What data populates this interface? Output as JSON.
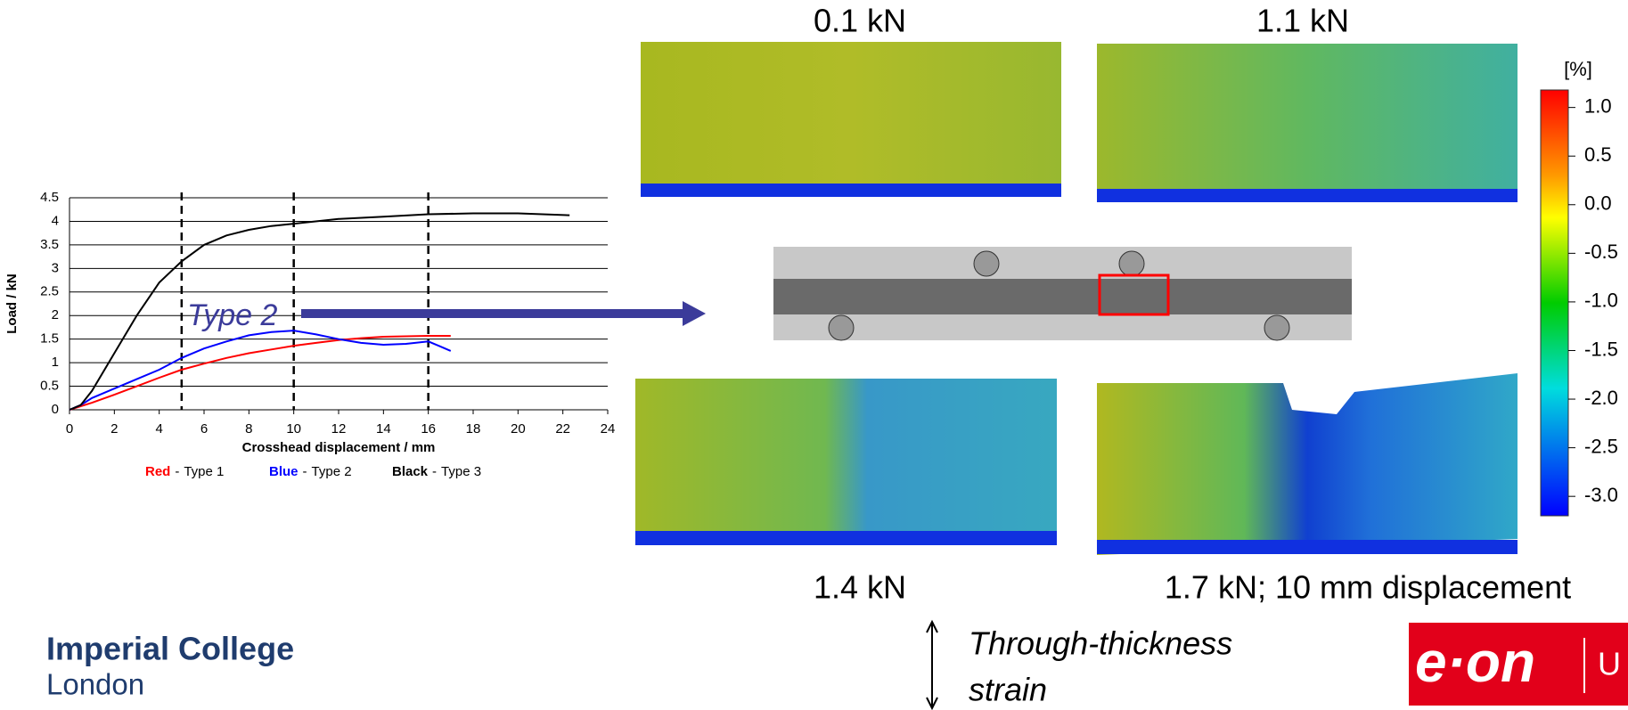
{
  "chart_data": {
    "type": "line",
    "xlabel": "Crosshead displacement / mm",
    "ylabel": "Load / kN",
    "xlim": [
      0,
      24
    ],
    "ylim": [
      0,
      4.5
    ],
    "xticks": [
      0,
      2,
      4,
      6,
      8,
      10,
      12,
      14,
      16,
      18,
      20,
      22,
      24
    ],
    "yticks": [
      0,
      0.5,
      1,
      1.5,
      2,
      2.5,
      3,
      3.5,
      4,
      4.5
    ],
    "grid": true,
    "vlines": [
      5,
      10,
      16
    ],
    "legend_separator": "-",
    "series": [
      {
        "name": "Type 1",
        "key": "Red",
        "color": "#ff0000",
        "x": [
          0,
          1,
          2,
          3,
          4,
          5,
          6,
          7,
          8,
          9,
          10,
          11,
          12,
          13,
          14,
          15,
          16,
          17
        ],
        "values": [
          0,
          0.15,
          0.32,
          0.5,
          0.68,
          0.85,
          0.98,
          1.1,
          1.2,
          1.28,
          1.36,
          1.42,
          1.48,
          1.52,
          1.55,
          1.56,
          1.57,
          1.57
        ]
      },
      {
        "name": "Type 2",
        "key": "Blue",
        "color": "#0000ff",
        "x": [
          0,
          0.5,
          1,
          2,
          3,
          4,
          5,
          6,
          7,
          8,
          9,
          10,
          11,
          12,
          13,
          14,
          15,
          16,
          16.5,
          17
        ],
        "values": [
          0,
          0.1,
          0.25,
          0.45,
          0.65,
          0.85,
          1.1,
          1.3,
          1.45,
          1.58,
          1.65,
          1.68,
          1.6,
          1.5,
          1.42,
          1.38,
          1.4,
          1.45,
          1.35,
          1.25
        ]
      },
      {
        "name": "Type 3",
        "key": "Black",
        "color": "#000000",
        "x": [
          0,
          0.5,
          1,
          2,
          3,
          4,
          5,
          6,
          7,
          8,
          9,
          10,
          12,
          14,
          16,
          18,
          20,
          22.3
        ],
        "values": [
          0,
          0.1,
          0.4,
          1.2,
          2.0,
          2.7,
          3.15,
          3.5,
          3.7,
          3.82,
          3.9,
          3.95,
          4.05,
          4.1,
          4.15,
          4.17,
          4.17,
          4.13
        ]
      }
    ],
    "annotation": "Type 2"
  },
  "maps": {
    "labels": [
      "0.1 kN",
      "1.1 kN",
      "1.4 kN",
      "1.7 kN; 10 mm displacement"
    ]
  },
  "colorbar": {
    "unit": "[%]",
    "lim": [
      1.18,
      -3.2
    ],
    "ticks": [
      {
        "value": 1,
        "label": "1.0"
      },
      0.5,
      {
        "value": 0,
        "label": "0.0"
      },
      -0.5,
      {
        "value": -1,
        "label": "-1.0"
      },
      -1.5,
      {
        "value": -2,
        "label": "-2.0"
      },
      -2.5,
      {
        "value": -3,
        "label": "-3.0"
      }
    ]
  },
  "strain_note": {
    "line1": "Through-thickness",
    "line2": "strain"
  },
  "logos": {
    "imperial1": "Imperial College",
    "imperial2": "London",
    "eon": "e·on",
    "eon_suffix": "U"
  }
}
